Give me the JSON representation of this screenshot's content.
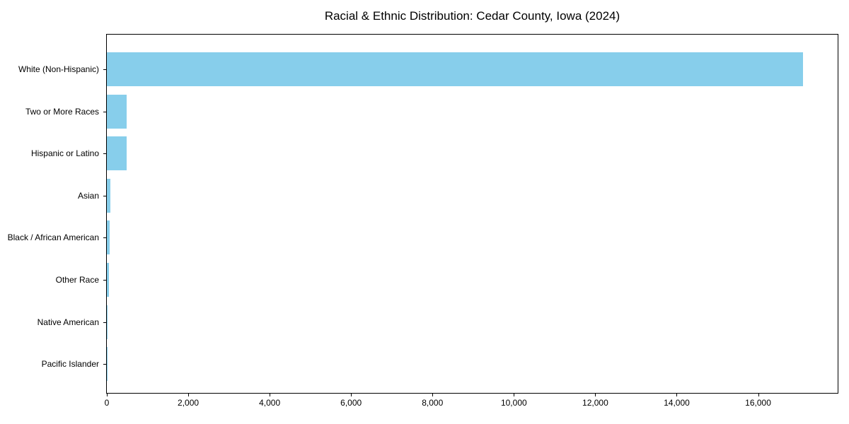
{
  "chart_data": {
    "type": "bar",
    "orientation": "horizontal",
    "title": "Racial & Ethnic Distribution: Cedar County, Iowa (2024)",
    "categories": [
      "White (Non-Hispanic)",
      "Two or More Races",
      "Hispanic or Latino",
      "Asian",
      "Black / African American",
      "Other Race",
      "Native American",
      "Pacific Islander"
    ],
    "values": [
      17100,
      480,
      485,
      85,
      75,
      45,
      15,
      5
    ],
    "bar_color": "#87CEEB",
    "xlabel": "",
    "ylabel": "",
    "xlim": [
      0,
      17955
    ],
    "x_ticks": [
      0,
      2000,
      4000,
      6000,
      8000,
      10000,
      12000,
      14000,
      16000
    ],
    "x_tick_labels": [
      "0",
      "2,000",
      "4,000",
      "6,000",
      "8,000",
      "10,000",
      "12,000",
      "14,000",
      "16,000"
    ],
    "grid": false,
    "legend": "none",
    "axis_color": "#000000",
    "background_color": "#ffffff"
  }
}
